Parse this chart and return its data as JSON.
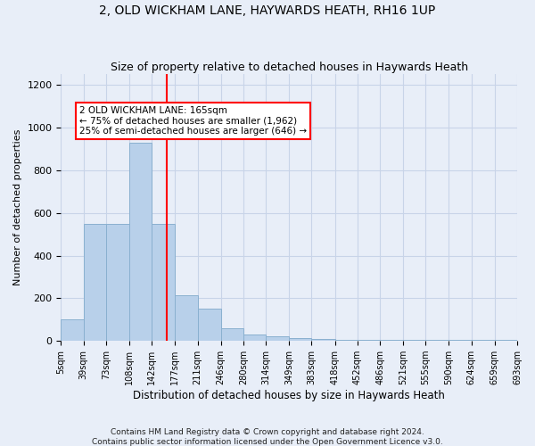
{
  "title1": "2, OLD WICKHAM LANE, HAYWARDS HEATH, RH16 1UP",
  "title2": "Size of property relative to detached houses in Haywards Heath",
  "xlabel": "Distribution of detached houses by size in Haywards Heath",
  "ylabel": "Number of detached properties",
  "bins": [
    5,
    39,
    73,
    108,
    142,
    177,
    211,
    246,
    280,
    314,
    349,
    383,
    418,
    452,
    486,
    521,
    555,
    590,
    624,
    659,
    693
  ],
  "bin_labels": [
    "5sqm",
    "39sqm",
    "73sqm",
    "108sqm",
    "142sqm",
    "177sqm",
    "211sqm",
    "246sqm",
    "280sqm",
    "314sqm",
    "349sqm",
    "383sqm",
    "418sqm",
    "452sqm",
    "486sqm",
    "521sqm",
    "555sqm",
    "590sqm",
    "624sqm",
    "659sqm",
    "693sqm"
  ],
  "bar_heights": [
    100,
    550,
    550,
    930,
    550,
    215,
    150,
    60,
    30,
    20,
    15,
    10,
    5,
    5,
    5,
    5,
    5,
    5,
    5,
    5
  ],
  "bar_color": "#b8d0ea",
  "bar_edge_color": "#8ab0d0",
  "grid_color": "#c8d4e8",
  "background_color": "#e8eef8",
  "red_line_x": 165,
  "property_label": "2 OLD WICKHAM LANE: 165sqm",
  "annotation_line1": "← 75% of detached houses are smaller (1,962)",
  "annotation_line2": "25% of semi-detached houses are larger (646) →",
  "ylim": [
    0,
    1250
  ],
  "yticks": [
    0,
    200,
    400,
    600,
    800,
    1000,
    1200
  ],
  "footer1": "Contains HM Land Registry data © Crown copyright and database right 2024.",
  "footer2": "Contains public sector information licensed under the Open Government Licence v3.0."
}
